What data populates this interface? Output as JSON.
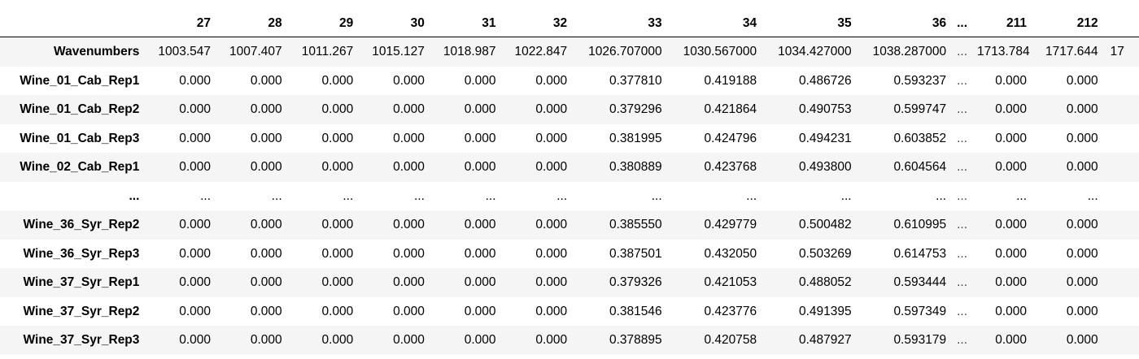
{
  "table": {
    "columns": [
      "27",
      "28",
      "29",
      "30",
      "31",
      "32",
      "33",
      "34",
      "35",
      "36",
      "...",
      "211",
      "212",
      ""
    ],
    "rows": [
      {
        "index": "Wavenumbers",
        "values": [
          "1003.547",
          "1007.407",
          "1011.267",
          "1015.127",
          "1018.987",
          "1022.847",
          "1026.707000",
          "1030.567000",
          "1034.427000",
          "1038.287000",
          "...",
          "1713.784",
          "1717.644",
          "17"
        ]
      },
      {
        "index": "Wine_01_Cab_Rep1",
        "values": [
          "0.000",
          "0.000",
          "0.000",
          "0.000",
          "0.000",
          "0.000",
          "0.377810",
          "0.419188",
          "0.486726",
          "0.593237",
          "...",
          "0.000",
          "0.000",
          ""
        ]
      },
      {
        "index": "Wine_01_Cab_Rep2",
        "values": [
          "0.000",
          "0.000",
          "0.000",
          "0.000",
          "0.000",
          "0.000",
          "0.379296",
          "0.421864",
          "0.490753",
          "0.599747",
          "...",
          "0.000",
          "0.000",
          ""
        ]
      },
      {
        "index": "Wine_01_Cab_Rep3",
        "values": [
          "0.000",
          "0.000",
          "0.000",
          "0.000",
          "0.000",
          "0.000",
          "0.381995",
          "0.424796",
          "0.494231",
          "0.603852",
          "...",
          "0.000",
          "0.000",
          ""
        ]
      },
      {
        "index": "Wine_02_Cab_Rep1",
        "values": [
          "0.000",
          "0.000",
          "0.000",
          "0.000",
          "0.000",
          "0.000",
          "0.380889",
          "0.423768",
          "0.493800",
          "0.604564",
          "...",
          "0.000",
          "0.000",
          ""
        ]
      },
      {
        "index": "...",
        "values": [
          "...",
          "...",
          "...",
          "...",
          "...",
          "...",
          "...",
          "...",
          "...",
          "...",
          "...",
          "...",
          "...",
          ""
        ]
      },
      {
        "index": "Wine_36_Syr_Rep2",
        "values": [
          "0.000",
          "0.000",
          "0.000",
          "0.000",
          "0.000",
          "0.000",
          "0.385550",
          "0.429779",
          "0.500482",
          "0.610995",
          "...",
          "0.000",
          "0.000",
          ""
        ]
      },
      {
        "index": "Wine_36_Syr_Rep3",
        "values": [
          "0.000",
          "0.000",
          "0.000",
          "0.000",
          "0.000",
          "0.000",
          "0.387501",
          "0.432050",
          "0.503269",
          "0.614753",
          "...",
          "0.000",
          "0.000",
          ""
        ]
      },
      {
        "index": "Wine_37_Syr_Rep1",
        "values": [
          "0.000",
          "0.000",
          "0.000",
          "0.000",
          "0.000",
          "0.000",
          "0.379326",
          "0.421053",
          "0.488052",
          "0.593444",
          "...",
          "0.000",
          "0.000",
          ""
        ]
      },
      {
        "index": "Wine_37_Syr_Rep2",
        "values": [
          "0.000",
          "0.000",
          "0.000",
          "0.000",
          "0.000",
          "0.000",
          "0.381546",
          "0.423776",
          "0.491395",
          "0.597349",
          "...",
          "0.000",
          "0.000",
          ""
        ]
      },
      {
        "index": "Wine_37_Syr_Rep3",
        "values": [
          "0.000",
          "0.000",
          "0.000",
          "0.000",
          "0.000",
          "0.000",
          "0.378895",
          "0.420758",
          "0.487927",
          "0.593179",
          "...",
          "0.000",
          "0.000",
          ""
        ]
      }
    ]
  }
}
